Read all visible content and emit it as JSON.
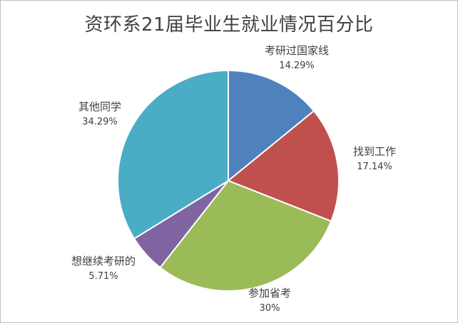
{
  "chart_data": {
    "type": "pie",
    "title": "资环系21届毕业生就业情况百分比",
    "categories": [
      "考研过国家线",
      "找到工作",
      "参加省考",
      "想继续考研的",
      "其他同学"
    ],
    "values": [
      14.29,
      17.14,
      30,
      5.71,
      34.29
    ],
    "value_labels": [
      "14.29%",
      "17.14%",
      "30%",
      "5.71%",
      "34.29%"
    ],
    "colors": [
      "#4F81BD",
      "#C0504D",
      "#9BBB59",
      "#8064A2",
      "#4BACC6"
    ],
    "start_angle_deg": 0,
    "direction": "clockwise",
    "legend": "none"
  }
}
